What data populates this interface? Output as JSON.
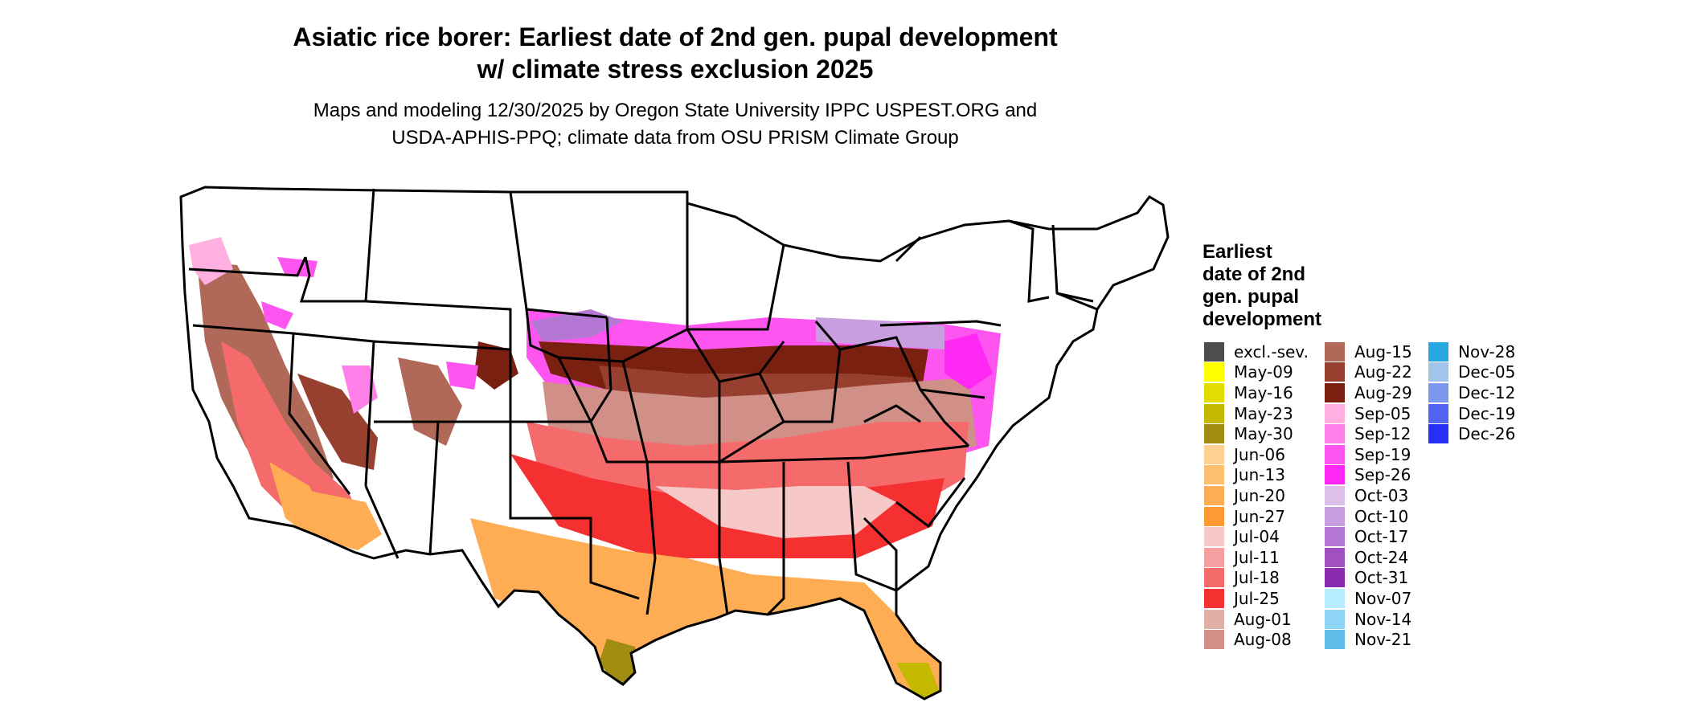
{
  "title_line1": "Asiatic rice borer: Earliest date of 2nd gen. pupal development",
  "title_line2": "w/ climate stress exclusion 2025",
  "subtitle_line1": "Maps and modeling 12/30/2025 by Oregon State University IPPC USPEST.ORG and",
  "subtitle_line2": "USDA-APHIS-PPQ; climate data from OSU PRISM Climate Group",
  "legend": {
    "title_lines": [
      "Earliest",
      "date of 2nd",
      "gen. pupal",
      "development"
    ],
    "columns": [
      [
        {
          "label": "excl.-sev.",
          "color": "#4d4d4d"
        },
        {
          "label": "May-09",
          "color": "#ffff00"
        },
        {
          "label": "May-16",
          "color": "#e2dc00"
        },
        {
          "label": "May-23",
          "color": "#c4b800"
        },
        {
          "label": "May-30",
          "color": "#a08c10"
        },
        {
          "label": "Jun-06",
          "color": "#ffd090"
        },
        {
          "label": "Jun-13",
          "color": "#ffbf70"
        },
        {
          "label": "Jun-20",
          "color": "#ffad55"
        },
        {
          "label": "Jun-27",
          "color": "#ff9a35"
        },
        {
          "label": "Jul-04",
          "color": "#f7c8c8"
        },
        {
          "label": "Jul-11",
          "color": "#f5a0a0"
        },
        {
          "label": "Jul-18",
          "color": "#f56a6a"
        },
        {
          "label": "Jul-25",
          "color": "#f53030"
        },
        {
          "label": "Aug-01",
          "color": "#e0b0a8"
        },
        {
          "label": "Aug-08",
          "color": "#d09088"
        }
      ],
      [
        {
          "label": "Aug-15",
          "color": "#b06858"
        },
        {
          "label": "Aug-22",
          "color": "#984030"
        },
        {
          "label": "Aug-29",
          "color": "#7a2010"
        },
        {
          "label": "Sep-05",
          "color": "#ffb0e0"
        },
        {
          "label": "Sep-12",
          "color": "#ff80e8"
        },
        {
          "label": "Sep-19",
          "color": "#ff55f0"
        },
        {
          "label": "Sep-26",
          "color": "#ff28f5"
        },
        {
          "label": "Oct-03",
          "color": "#dcc0e8"
        },
        {
          "label": "Oct-10",
          "color": "#c89ee0"
        },
        {
          "label": "Oct-17",
          "color": "#b478d4"
        },
        {
          "label": "Oct-24",
          "color": "#a050c0"
        },
        {
          "label": "Oct-31",
          "color": "#8a2aae"
        },
        {
          "label": "Nov-07",
          "color": "#b8ecff"
        },
        {
          "label": "Nov-14",
          "color": "#8ed4f4"
        },
        {
          "label": "Nov-21",
          "color": "#60bce8"
        }
      ],
      [
        {
          "label": "Nov-28",
          "color": "#28a8e0"
        },
        {
          "label": "Dec-05",
          "color": "#a0c4ea"
        },
        {
          "label": "Dec-12",
          "color": "#7c98ee"
        },
        {
          "label": "Dec-19",
          "color": "#5264f2"
        },
        {
          "label": "Dec-26",
          "color": "#2830f8"
        }
      ]
    ]
  }
}
